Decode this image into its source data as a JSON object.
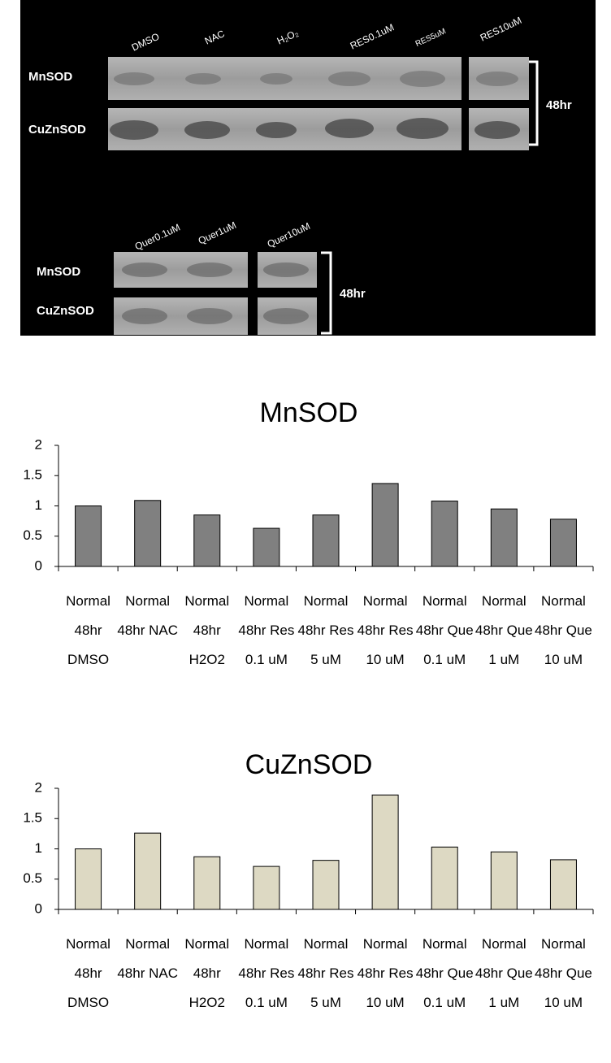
{
  "blot": {
    "top": {
      "lanes": [
        "DMSO",
        "NAC",
        "H₂O₂",
        "RES0.1uM",
        "RES5uM",
        "RES10uM"
      ],
      "rows": [
        "MnSOD",
        "CuZnSOD"
      ],
      "time": "48hr"
    },
    "bottom": {
      "lanes": [
        "Quer0.1uM",
        "Quer1uM",
        "Quer10uM"
      ],
      "rows": [
        "MnSOD",
        "CuZnSOD"
      ],
      "time": "48hr"
    }
  },
  "chart_data": [
    {
      "type": "bar",
      "title": "MnSOD",
      "color": "#808080",
      "categories": [
        "Normal 48hr DMSO",
        "Normal 48hr NAC",
        "Normal 48hr H2O2",
        "Normal 48hr Res 0.1 uM",
        "Normal 48hr Res 5 uM",
        "Normal 48hr Res 10 uM",
        "Normal 48hr Que 0.1 uM",
        "Normal 48hr Que 1 uM",
        "Normal 48hr Que 10 uM"
      ],
      "values": [
        1,
        1.09,
        0.85,
        0.63,
        0.85,
        1.37,
        1.08,
        0.95,
        0.78
      ],
      "ylim": [
        0,
        2
      ],
      "yticks": [
        0,
        0.5,
        1,
        1.5,
        2
      ]
    },
    {
      "type": "bar",
      "title": "CuZnSOD",
      "color": "#ddd9c3",
      "categories": [
        "Normal 48hr DMSO",
        "Normal 48hr NAC",
        "Normal 48hr H2O2",
        "Normal 48hr Res 0.1 uM",
        "Normal 48hr Res 5 uM",
        "Normal 48hr Res 10 uM",
        "Normal 48hr Que 0.1 uM",
        "Normal 48hr Que 1 uM",
        "Normal 48hr Que 10 uM"
      ],
      "values": [
        1,
        1.26,
        0.87,
        0.71,
        0.81,
        1.89,
        1.03,
        0.95,
        0.82
      ],
      "ylim": [
        0,
        2
      ],
      "yticks": [
        0,
        0.5,
        1,
        1.5,
        2
      ]
    }
  ]
}
